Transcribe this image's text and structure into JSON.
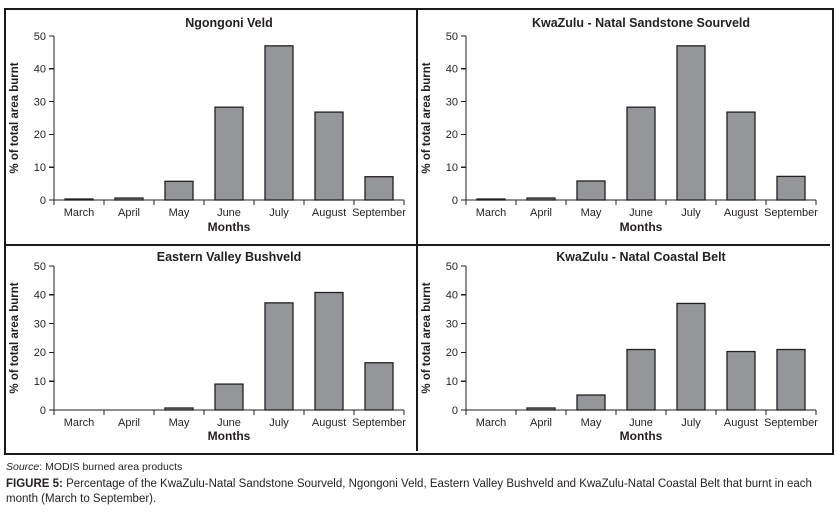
{
  "page": {
    "background": "#ffffff"
  },
  "colors": {
    "bar_fill": "#95969a",
    "bar_stroke": "#231f20",
    "axis": "#231f20",
    "text": "#231f20",
    "panel_border": "#1a1a1a"
  },
  "figure": {
    "source_prefix": "Source",
    "source_rest": ": MODIS burned area products",
    "caption_label": "FIGURE 5:",
    "caption_text": " Percentage of the KwaZulu-Natal Sandstone Sourveld, Ngongoni Veld, Eastern Valley Bushveld and KwaZulu-Natal Coastal Belt that burnt in each month (March to September)."
  },
  "chart_data": [
    {
      "type": "bar",
      "title": "Ngongoni Veld",
      "xlabel": "Months",
      "ylabel": "% of total area burnt",
      "categories": [
        "March",
        "April",
        "May",
        "June",
        "July",
        "August",
        "September"
      ],
      "values": [
        0.3,
        0.6,
        5.7,
        28.3,
        47.0,
        26.8,
        7.1
      ],
      "ylim": [
        0,
        50
      ],
      "yticks": [
        0,
        10,
        20,
        30,
        40,
        50
      ],
      "grid": false,
      "legend": null
    },
    {
      "type": "bar",
      "title": "KwaZulu - Natal Sandstone Sourveld",
      "xlabel": "Months",
      "ylabel": "% of total area burnt",
      "categories": [
        "March",
        "April",
        "May",
        "June",
        "July",
        "August",
        "September"
      ],
      "values": [
        0.3,
        0.6,
        5.8,
        28.3,
        47.0,
        26.8,
        7.2
      ],
      "ylim": [
        0,
        50
      ],
      "yticks": [
        0,
        10,
        20,
        30,
        40,
        50
      ],
      "grid": false,
      "legend": null
    },
    {
      "type": "bar",
      "title": "Eastern Valley Bushveld",
      "xlabel": "Months",
      "ylabel": "% of total area burnt",
      "categories": [
        "March",
        "April",
        "May",
        "June",
        "July",
        "August",
        "September"
      ],
      "values": [
        0,
        0,
        0.7,
        9.0,
        37.2,
        40.8,
        16.4
      ],
      "ylim": [
        0,
        50
      ],
      "yticks": [
        0,
        10,
        20,
        30,
        40,
        50
      ],
      "grid": false,
      "legend": null
    },
    {
      "type": "bar",
      "title": "KwaZulu - Natal Coastal Belt",
      "xlabel": "Months",
      "ylabel": "% of total area burnt",
      "categories": [
        "March",
        "April",
        "May",
        "June",
        "July",
        "August",
        "September"
      ],
      "values": [
        0,
        0.7,
        5.2,
        21.0,
        37.0,
        20.3,
        21.0
      ],
      "ylim": [
        0,
        50
      ],
      "yticks": [
        0,
        10,
        20,
        30,
        40,
        50
      ],
      "grid": false,
      "legend": null
    }
  ]
}
